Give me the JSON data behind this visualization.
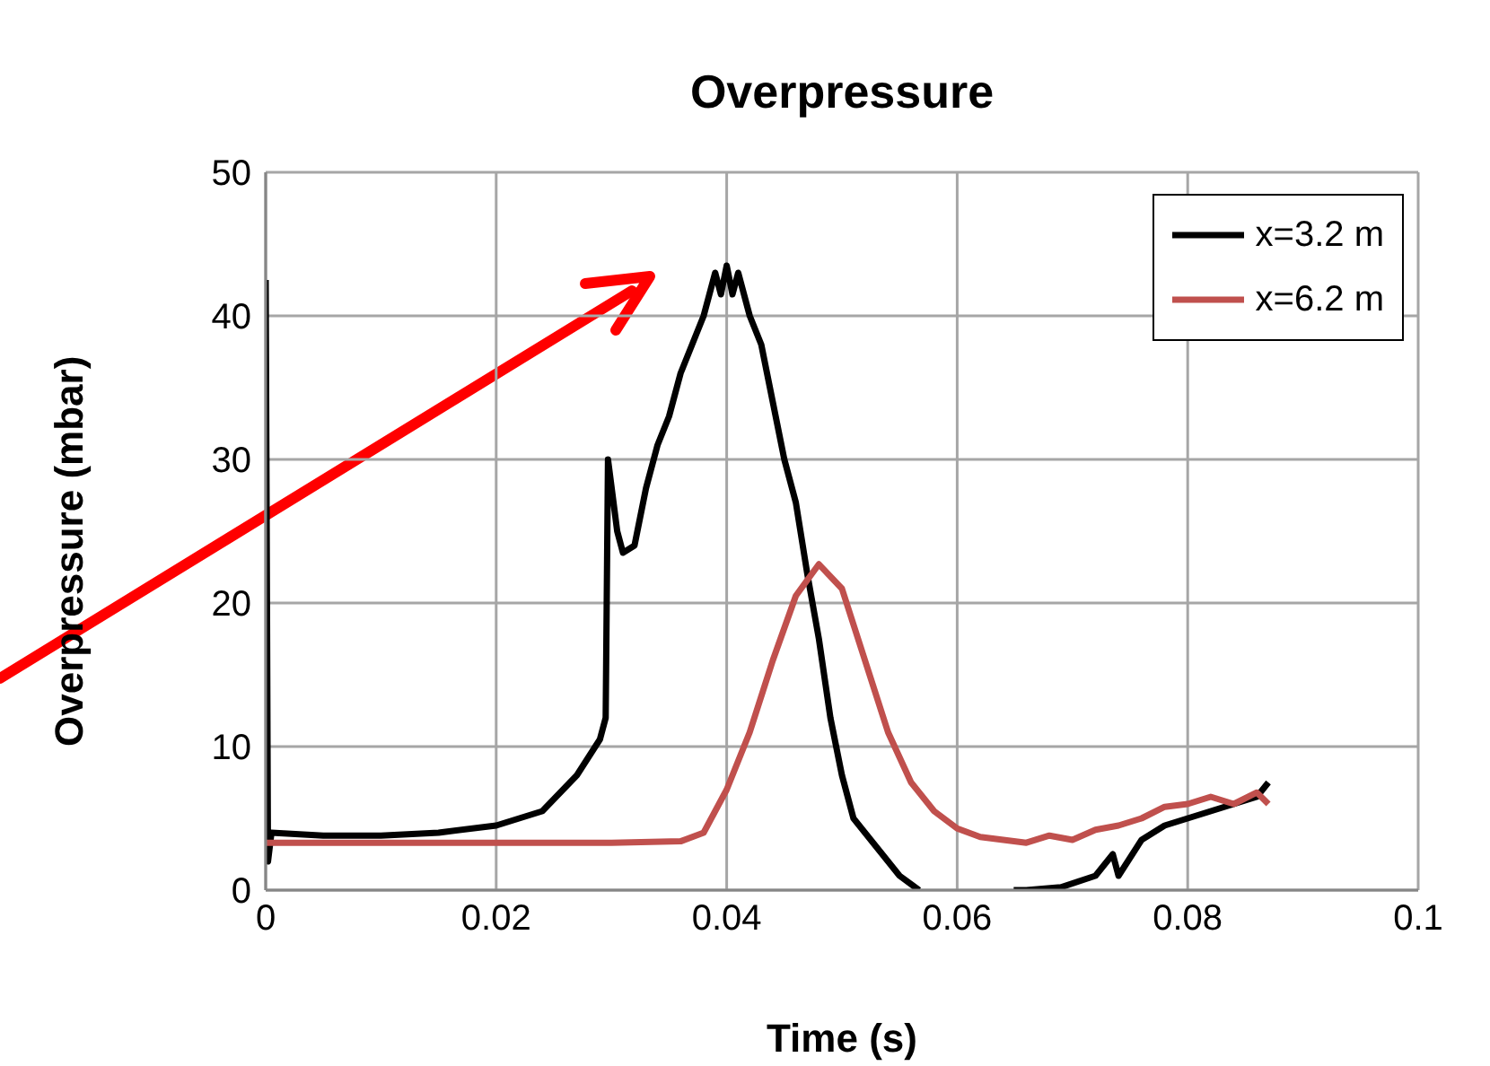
{
  "chart_data": {
    "type": "line",
    "title": "Overpressure",
    "xlabel": "Time (s)",
    "ylabel": "Overpressure (mbar)",
    "xlim": [
      0,
      0.1
    ],
    "xticks": [
      0,
      0.02,
      0.04,
      0.06,
      0.08,
      0.1
    ],
    "ylim": [
      0,
      50
    ],
    "yticks": [
      0,
      10,
      20,
      30,
      40,
      50
    ],
    "grid": true,
    "legend": "top right",
    "marker": "none",
    "line_style": "solid",
    "series": [
      {
        "name": "x=3.2 m",
        "color": "#000000",
        "x": [
          0,
          0.0002,
          0.0005,
          0.005,
          0.01,
          0.015,
          0.02,
          0.024,
          0.027,
          0.029,
          0.0295,
          0.0297,
          0.0305,
          0.031,
          0.032,
          0.033,
          0.034,
          0.035,
          0.036,
          0.037,
          0.038,
          0.039,
          0.0395,
          0.04,
          0.0405,
          0.041,
          0.042,
          0.043,
          0.044,
          0.045,
          0.046,
          0.047,
          0.048,
          0.049,
          0.05,
          0.051,
          0.053,
          0.055,
          0.0567,
          0.06,
          0.0649,
          0.066,
          0.069,
          0.072,
          0.0735,
          0.074,
          0.076,
          0.078,
          0.08,
          0.082,
          0.084,
          0.086,
          0.087
        ],
        "values": [
          42.5,
          2,
          4,
          3.8,
          3.8,
          4,
          4.5,
          5.5,
          8,
          10.5,
          12,
          30,
          25,
          23.5,
          24,
          28,
          31,
          33,
          36,
          38,
          40,
          43,
          41.5,
          43.5,
          41.5,
          43,
          40,
          38,
          34,
          30,
          27,
          22,
          17.5,
          12,
          8,
          5,
          3,
          1,
          0,
          null,
          0,
          0,
          0.2,
          1,
          2.5,
          1,
          3.5,
          4.5,
          5,
          5.5,
          6,
          6.5,
          7.5
        ]
      },
      {
        "name": "x=6.2 m",
        "color": "#c0504d",
        "x": [
          0,
          0.01,
          0.02,
          0.03,
          0.036,
          0.038,
          0.04,
          0.042,
          0.044,
          0.046,
          0.048,
          0.05,
          0.052,
          0.054,
          0.056,
          0.058,
          0.06,
          0.062,
          0.064,
          0.066,
          0.068,
          0.07,
          0.072,
          0.074,
          0.076,
          0.078,
          0.08,
          0.082,
          0.084,
          0.086,
          0.087
        ],
        "values": [
          3.3,
          3.3,
          3.3,
          3.3,
          3.4,
          4,
          7,
          11,
          16,
          20.5,
          22.7,
          21,
          16,
          11,
          7.5,
          5.5,
          4.3,
          3.7,
          3.5,
          3.3,
          3.8,
          3.5,
          4.2,
          4.5,
          5,
          5.8,
          6,
          6.5,
          6,
          6.8,
          6
        ]
      }
    ]
  }
}
